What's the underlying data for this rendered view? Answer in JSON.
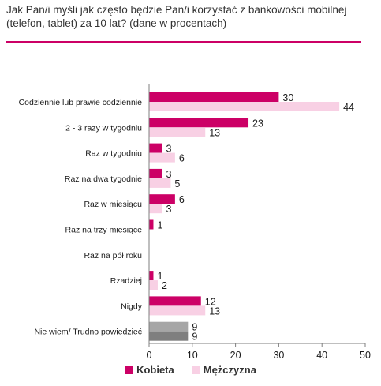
{
  "title": "Jak Pan/i myśli jak często będzie Pan/i korzystać z bankowości mobilnej (telefon, tablet) za 10 lat? (dane w procentach)",
  "colors": {
    "accent": "#cc0066",
    "kobieta": "#cc0066",
    "mezczyzna": "#f8d0e4",
    "dontknow_kobieta": "#a6a6a6",
    "dontknow_mezczyzna": "#7f7f7f",
    "axis": "#7f7f7f"
  },
  "chart_data": {
    "type": "bar",
    "orientation": "horizontal",
    "categories": [
      "Codziennie lub prawie codziennie",
      "2 - 3 razy w tygodniu",
      "Raz w tygodniu",
      "Raz na dwa tygodnie",
      "Raz w miesiącu",
      "Raz na trzy miesiące",
      "Raz na pół roku",
      "Rzadziej",
      "Nigdy",
      "Nie wiem/ Trudno powiedzieć"
    ],
    "series": [
      {
        "name": "Kobieta",
        "values": [
          30,
          23,
          3,
          3,
          6,
          1,
          null,
          1,
          12,
          9
        ]
      },
      {
        "name": "Mężczyzna",
        "values": [
          44,
          13,
          6,
          5,
          3,
          null,
          null,
          2,
          13,
          9
        ]
      }
    ],
    "value_labels": [
      [
        "30",
        "23",
        "3",
        "3",
        "6",
        "1",
        "",
        "1",
        "12",
        "9"
      ],
      [
        "44",
        "13",
        "6",
        "5",
        "3",
        "",
        "",
        "2",
        "13",
        "9"
      ]
    ],
    "xlim": [
      0,
      50
    ],
    "xticks": [
      "0",
      "10",
      "20",
      "30",
      "40",
      "50"
    ],
    "grid": false,
    "legend_position": "bottom"
  },
  "legend": {
    "kobieta_label": "Kobieta",
    "mezczyzna_label": "Mężczyzna"
  }
}
